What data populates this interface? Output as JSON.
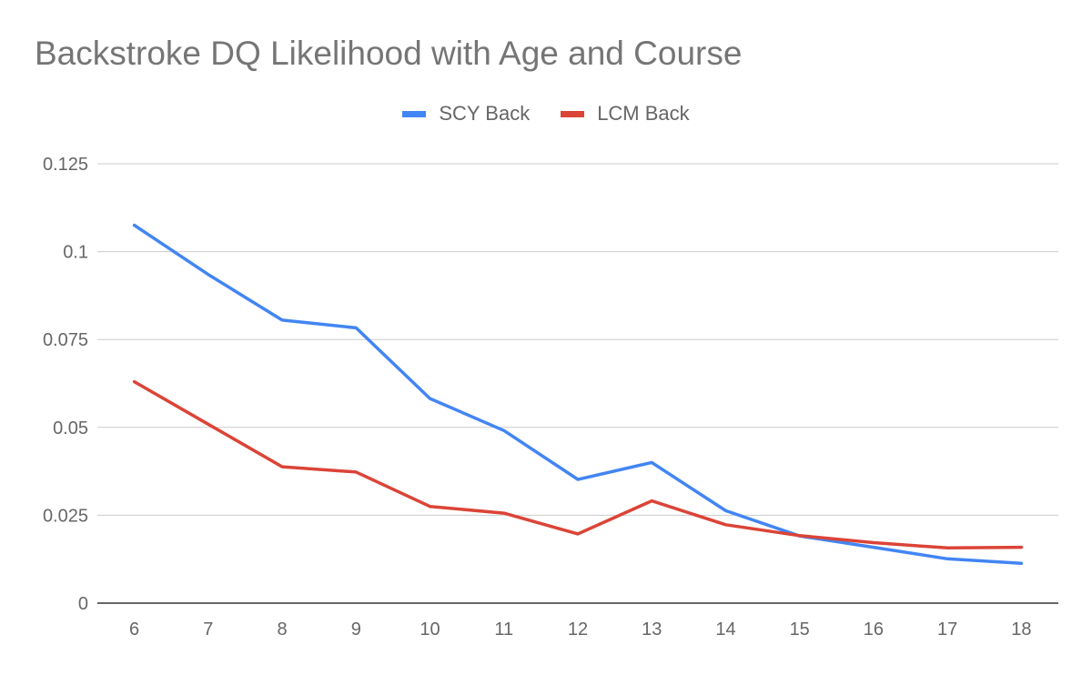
{
  "chart_data": {
    "type": "line",
    "title": "Backstroke DQ Likelihood with Age and Course",
    "xlabel": "",
    "ylabel": "",
    "categories": [
      "6",
      "7",
      "8",
      "9",
      "10",
      "11",
      "12",
      "13",
      "14",
      "15",
      "16",
      "17",
      "18"
    ],
    "series": [
      {
        "name": "SCY Back",
        "color": "#4285f4",
        "values": [
          0.1075,
          0.0935,
          0.0805,
          0.0783,
          0.0582,
          0.0491,
          0.0352,
          0.04,
          0.0263,
          0.0191,
          0.0159,
          0.0126,
          0.0113
        ]
      },
      {
        "name": "LCM Back",
        "color": "#db4437",
        "values": [
          0.063,
          0.0509,
          0.0388,
          0.0373,
          0.0275,
          0.0256,
          0.0197,
          0.0291,
          0.0223,
          0.0192,
          0.0172,
          0.0157,
          0.0159
        ]
      }
    ],
    "y_ticks": [
      "0",
      "0.025",
      "0.05",
      "0.075",
      "0.1",
      "0.125"
    ],
    "ylim": [
      0,
      0.125
    ],
    "grid": true,
    "legend_position": "top-center"
  }
}
